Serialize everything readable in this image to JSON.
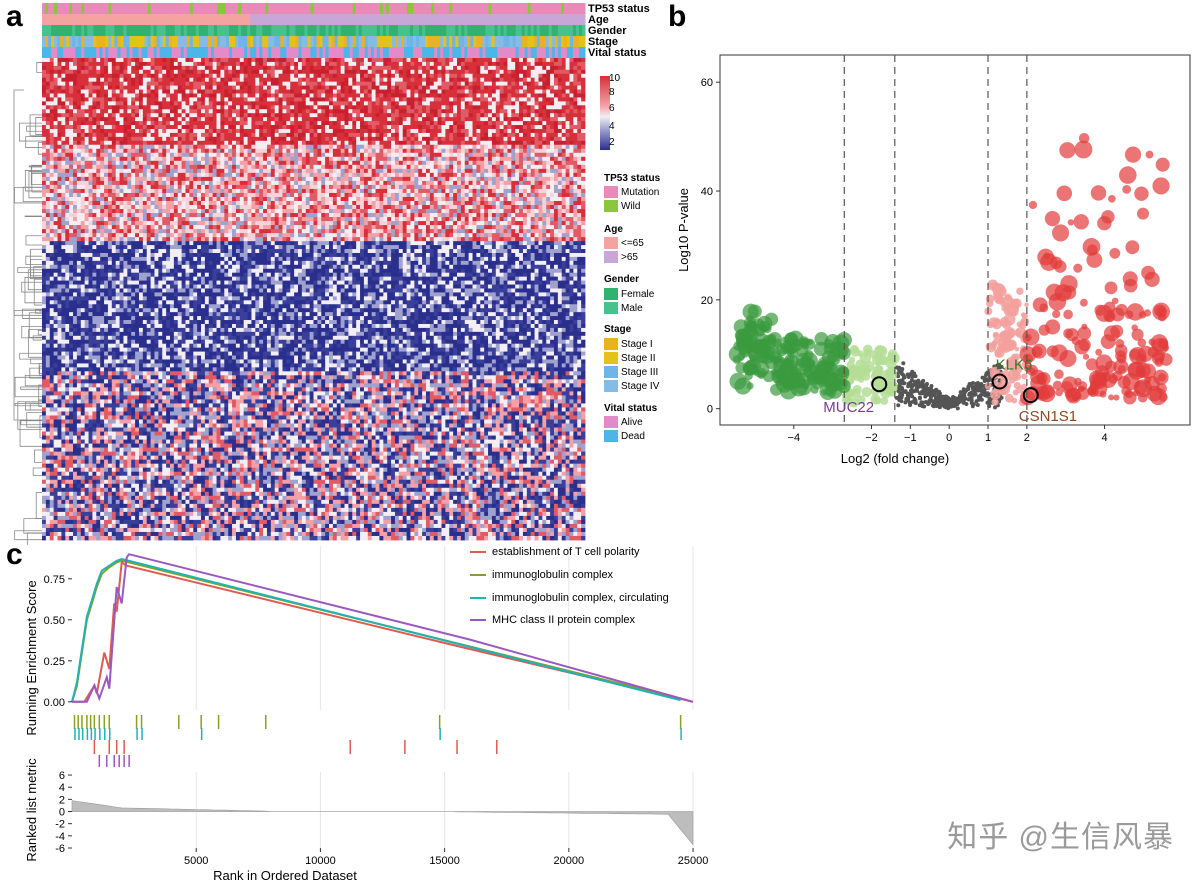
{
  "panels": {
    "a": "a",
    "b": "b",
    "c": "c"
  },
  "colors": {
    "red": "#d7303a",
    "pink": "#f08a98",
    "blue": "#2a2f8e",
    "white": "#f4f0f2",
    "green": "#3a9a3f",
    "lightgreen": "#b4dd95",
    "gray": "#555555",
    "lightred": "#f3a09c",
    "gsea_red": "#e05a4f",
    "gsea_olive": "#8aa021",
    "gsea_teal": "#1fb2b6",
    "gsea_purple": "#9a59c0"
  },
  "heatmap": {
    "annotations": [
      "TP53 status",
      "Age",
      "Gender",
      "Stage",
      "Vital status"
    ],
    "colorbar_ticks": [
      "10",
      "8",
      "6",
      "4",
      "2"
    ],
    "legend_groups": [
      {
        "title": "TP53 status",
        "items": [
          {
            "label": "Mutation",
            "color": "#e98ab8"
          },
          {
            "label": "Wild",
            "color": "#8cc63f"
          }
        ]
      },
      {
        "title": "Age",
        "items": [
          {
            "label": "<=65",
            "color": "#f4a3a0"
          },
          {
            "label": ">65",
            "color": "#c8a6d8"
          }
        ]
      },
      {
        "title": "Gender",
        "items": [
          {
            "label": "Female",
            "color": "#2fb36e"
          },
          {
            "label": "Male",
            "color": "#46c28f"
          }
        ]
      },
      {
        "title": "Stage",
        "items": [
          {
            "label": "Stage I",
            "color": "#e9b320"
          },
          {
            "label": "Stage II",
            "color": "#e4c318"
          },
          {
            "label": "Stage III",
            "color": "#6fb5e6"
          },
          {
            "label": "Stage IV",
            "color": "#84bce4"
          }
        ]
      },
      {
        "title": "Vital status",
        "items": [
          {
            "label": "Alive",
            "color": "#e38ac9"
          },
          {
            "label": "Dead",
            "color": "#4db6e8"
          }
        ]
      }
    ]
  },
  "chart_data": [
    {
      "type": "heatmap",
      "title": "",
      "row_blocks": [
        {
          "level": "high",
          "fraction": 0.18
        },
        {
          "level": "mixed_high",
          "fraction": 0.2
        },
        {
          "level": "low",
          "fraction": 0.27
        },
        {
          "level": "mixed_low",
          "fraction": 0.35
        }
      ],
      "value_range": [
        2,
        10
      ],
      "annotations": [
        "TP53 status",
        "Age",
        "Gender",
        "Stage",
        "Vital status"
      ]
    },
    {
      "type": "scatter",
      "title": "",
      "xlabel": "Log2 (fold change)",
      "ylabel": "Log10 P-value",
      "xticks": [
        "−4",
        "−2",
        "−1",
        "0",
        "1",
        "2",
        "4"
      ],
      "xtick_values": [
        -4,
        -2,
        -1,
        0,
        1,
        2,
        4
      ],
      "yticks": [
        "0",
        "20",
        "40",
        "60"
      ],
      "ytick_values": [
        0,
        20,
        40,
        60
      ],
      "xlim": [
        -5.9,
        6.2
      ],
      "ylim": [
        -3,
        65
      ],
      "thresholds": [
        -2.7,
        -1.4,
        1,
        2
      ],
      "highlight_genes": [
        {
          "label": "MUC22",
          "x": -1.8,
          "y": 4.5,
          "color": "#7a3e8e"
        },
        {
          "label": "KLK6",
          "x": 1.3,
          "y": 5,
          "color": "#2c7a2c"
        },
        {
          "label": "CSN1S1",
          "x": 2.1,
          "y": 2.5,
          "color": "#8a4a20"
        }
      ]
    },
    {
      "type": "line",
      "title": "",
      "xlabel": "Rank in Ordered Dataset",
      "ylabel": "Running Enrichment Score",
      "ylabel2": "Ranked list metric",
      "xticks": [
        "5000",
        "10000",
        "15000",
        "20000",
        "25000"
      ],
      "xtick_values": [
        5000,
        10000,
        15000,
        20000,
        25000
      ],
      "yticks": [
        "0.00",
        "0.25",
        "0.50",
        "0.75"
      ],
      "ytick_values": [
        0,
        0.25,
        0.5,
        0.75
      ],
      "yticks2": [
        "6",
        "4",
        "2",
        "0",
        "-2",
        "-4",
        "-6"
      ],
      "ytick2_values": [
        6,
        4,
        2,
        0,
        -2,
        -4,
        -6
      ],
      "xlim": [
        0,
        25200
      ],
      "ylim": [
        -0.05,
        0.95
      ],
      "ylim2": [
        -6,
        6.5
      ],
      "series": [
        {
          "name": "establishment of T cell polarity",
          "color": "#e05a4f",
          "x": [
            0,
            500,
            900,
            1000,
            1300,
            1500,
            1700,
            1800,
            2000,
            2200,
            15500,
            25000
          ],
          "y": [
            0,
            0,
            0.1,
            0.05,
            0.3,
            0.2,
            0.6,
            0.55,
            0.85,
            0.83,
            0.34,
            0
          ]
        },
        {
          "name": "immunoglobulin complex",
          "color": "#8aa021",
          "x": [
            0,
            200,
            400,
            600,
            800,
            1000,
            1200,
            1500,
            1800,
            2000,
            2300,
            24500
          ],
          "y": [
            0,
            0.1,
            0.3,
            0.5,
            0.6,
            0.7,
            0.78,
            0.82,
            0.85,
            0.86,
            0.85,
            0.02
          ]
        },
        {
          "name": "immunoglobulin complex, circulating",
          "color": "#1fb2b6",
          "x": [
            0,
            200,
            400,
            600,
            800,
            1000,
            1200,
            1500,
            1800,
            2000,
            2300,
            24500
          ],
          "y": [
            0,
            0.12,
            0.32,
            0.52,
            0.62,
            0.72,
            0.8,
            0.83,
            0.86,
            0.87,
            0.86,
            0.01
          ]
        },
        {
          "name": "MHC class II protein complex",
          "color": "#9a59c0",
          "x": [
            0,
            600,
            900,
            1100,
            1400,
            1500,
            1800,
            2000,
            2200,
            2300,
            16000,
            25000
          ],
          "y": [
            0,
            0,
            0.1,
            0.02,
            0.15,
            0.08,
            0.7,
            0.6,
            0.88,
            0.9,
            0.38,
            0
          ]
        }
      ],
      "hit_tracks": [
        {
          "name": "immunoglobulin complex",
          "color": "#8aa021",
          "positions": [
            100,
            250,
            400,
            600,
            750,
            900,
            1100,
            1300,
            1500,
            2600,
            2800,
            4300,
            5200,
            5900,
            7800,
            14800,
            24500
          ]
        },
        {
          "name": "immunoglobulin complex, circulating",
          "color": "#1fb2b6",
          "positions": [
            120,
            280,
            430,
            620,
            780,
            930,
            1120,
            1320,
            1520,
            2620,
            2820,
            5220,
            14820,
            24520
          ]
        },
        {
          "name": "establishment of T cell polarity",
          "color": "#e05a4f",
          "positions": [
            900,
            1500,
            1800,
            2100,
            11200,
            13400,
            15500,
            17100
          ]
        },
        {
          "name": "MHC class II protein complex",
          "color": "#9a59c0",
          "positions": [
            1100,
            1400,
            1700,
            1900,
            2100,
            2300
          ]
        }
      ]
    }
  ],
  "watermark": "知乎 @生信风暴"
}
